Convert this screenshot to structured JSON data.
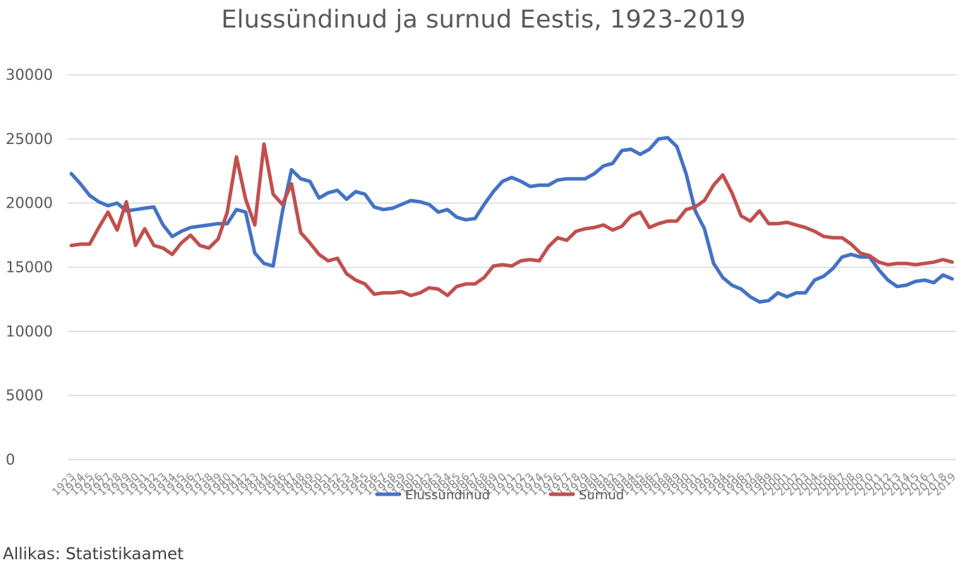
{
  "chart_data": {
    "type": "line",
    "title": "Elussündinud ja surnud Eestis, 1923-2019",
    "source": "Allikas: Statistikaamet",
    "xlabel": "",
    "ylabel": "",
    "ylim": [
      0,
      30000
    ],
    "yticks": [
      0,
      5000,
      10000,
      15000,
      20000,
      25000,
      30000
    ],
    "grid": true,
    "legend_position": "bottom",
    "x": [
      1923,
      1924,
      1925,
      1926,
      1927,
      1928,
      1929,
      1930,
      1931,
      1932,
      1933,
      1934,
      1935,
      1936,
      1937,
      1938,
      1939,
      1940,
      1941,
      1942,
      1943,
      1944,
      1945,
      1946,
      1947,
      1948,
      1949,
      1950,
      1951,
      1952,
      1953,
      1954,
      1955,
      1956,
      1957,
      1958,
      1959,
      1960,
      1961,
      1962,
      1963,
      1964,
      1965,
      1966,
      1967,
      1968,
      1969,
      1970,
      1971,
      1972,
      1973,
      1974,
      1975,
      1976,
      1977,
      1978,
      1979,
      1980,
      1981,
      1982,
      1983,
      1984,
      1985,
      1986,
      1987,
      1988,
      1989,
      1990,
      1991,
      1992,
      1993,
      1994,
      1995,
      1996,
      1997,
      1998,
      1999,
      2000,
      2001,
      2002,
      2003,
      2004,
      2005,
      2006,
      2007,
      2008,
      2009,
      2010,
      2011,
      2012,
      2013,
      2014,
      2015,
      2016,
      2017,
      2018,
      2019
    ],
    "series": [
      {
        "name": "Elussündinud",
        "color": "#4472c4",
        "values": [
          22300,
          21500,
          20600,
          20100,
          19800,
          20000,
          19400,
          19500,
          19600,
          19700,
          18300,
          17400,
          17800,
          18100,
          18200,
          18300,
          18400,
          18400,
          19500,
          19300,
          16100,
          15300,
          15100,
          19300,
          22600,
          21900,
          21700,
          20400,
          20800,
          21000,
          20300,
          20900,
          20700,
          19700,
          19500,
          19600,
          19900,
          20200,
          20100,
          19900,
          19300,
          19500,
          18900,
          18700,
          18800,
          19900,
          20900,
          21700,
          22000,
          21700,
          21300,
          21400,
          21400,
          21800,
          21900,
          21900,
          21900,
          22300,
          22900,
          23100,
          24100,
          24200,
          23800,
          24200,
          25000,
          25100,
          24400,
          22300,
          19400,
          18000,
          15300,
          14200,
          13600,
          13300,
          12700,
          12300,
          12400,
          13000,
          12700,
          13000,
          13000,
          14000,
          14300,
          14900,
          15800,
          16000,
          15800,
          15800,
          14800,
          14000,
          13500,
          13600,
          13900,
          14000,
          13800,
          14400,
          14100
        ]
      },
      {
        "name": "Surnud",
        "color": "#c0504d",
        "values": [
          16700,
          16800,
          16800,
          18100,
          19300,
          17900,
          20100,
          16700,
          18000,
          16700,
          16500,
          16000,
          16900,
          17500,
          16700,
          16500,
          17200,
          19300,
          23600,
          20300,
          18300,
          24600,
          20700,
          19900,
          21500,
          17700,
          16900,
          16000,
          15500,
          15700,
          14500,
          14000,
          13700,
          12900,
          13000,
          13000,
          13100,
          12800,
          13000,
          13400,
          13300,
          12800,
          13500,
          13700,
          13700,
          14200,
          15100,
          15200,
          15100,
          15500,
          15600,
          15500,
          16600,
          17300,
          17100,
          17800,
          18000,
          18100,
          18300,
          17900,
          18200,
          19000,
          19300,
          18100,
          18400,
          18600,
          18600,
          19500,
          19700,
          20200,
          21400,
          22200,
          20800,
          19000,
          18600,
          19400,
          18400,
          18400,
          18500,
          18300,
          18100,
          17800,
          17400,
          17300,
          17300,
          16800,
          16100,
          15900,
          15400,
          15200,
          15300,
          15300,
          15200,
          15300,
          15400,
          15600,
          15400
        ]
      }
    ]
  }
}
